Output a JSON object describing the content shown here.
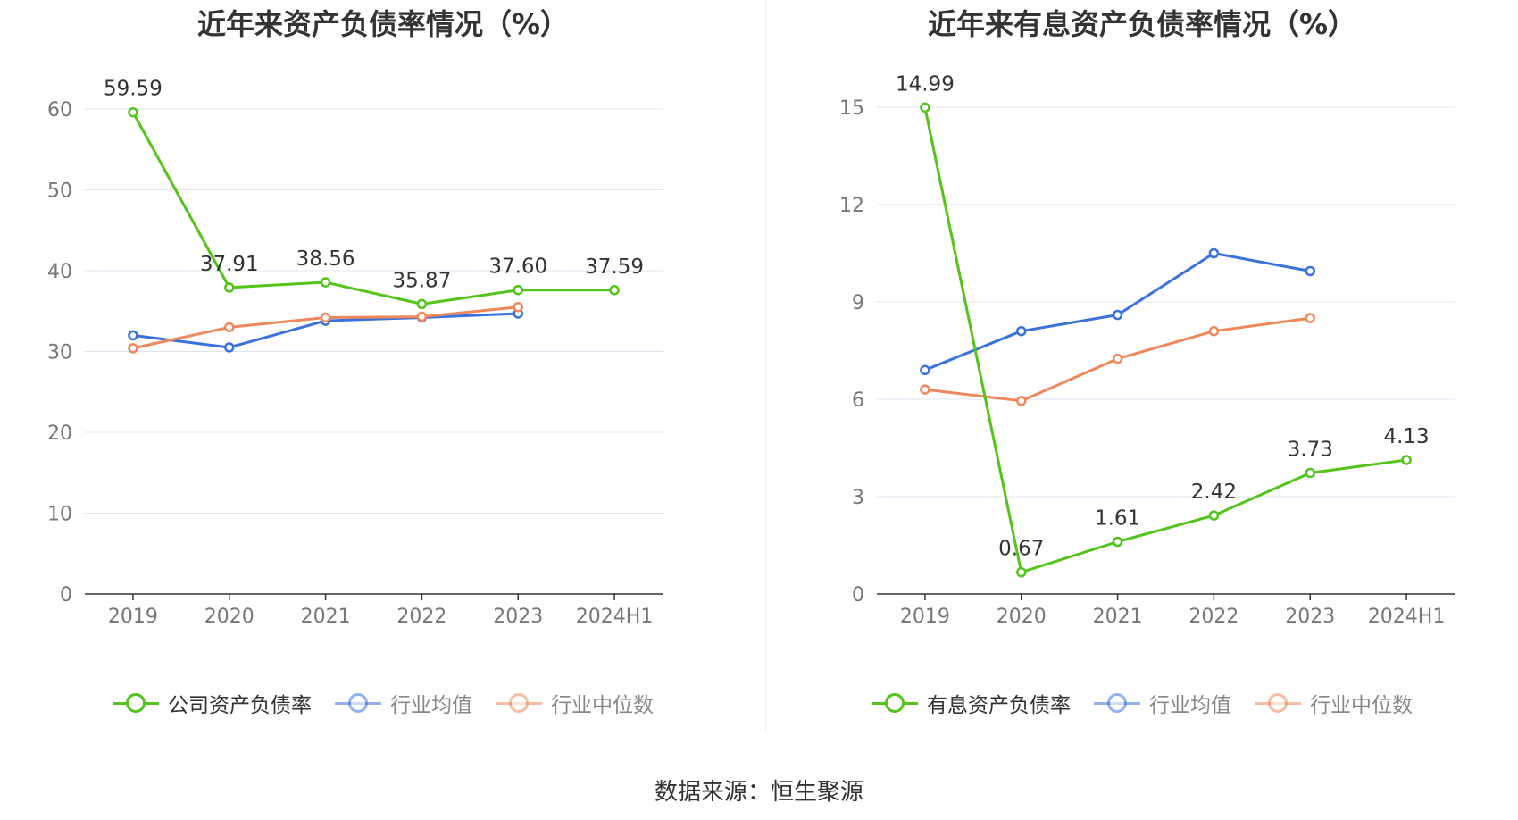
{
  "colors": {
    "company": "#52c41a",
    "industry_avg": "#3a72dd",
    "industry_median": "#f0875a",
    "grid": "#dfe4f0",
    "axis": "#333333",
    "tick_text": "#777777"
  },
  "footer": {
    "source": "数据来源：恒生聚源"
  },
  "chart_data": [
    {
      "type": "line",
      "title": "近年来资产负债率情况（%）",
      "categories": [
        "2019",
        "2020",
        "2021",
        "2022",
        "2023",
        "2024H1"
      ],
      "ylim": [
        0,
        60
      ],
      "yticks": [
        0,
        10,
        20,
        30,
        40,
        50,
        60
      ],
      "grid": true,
      "legend_position": "bottom",
      "series": [
        {
          "name": "公司资产负债率",
          "values": [
            59.59,
            37.91,
            38.56,
            35.87,
            37.6,
            37.59
          ],
          "labels": [
            "59.59",
            "37.91",
            "38.56",
            "35.87",
            "37.60",
            "37.59"
          ],
          "color_key": "company"
        },
        {
          "name": "行业均值",
          "values": [
            32.0,
            30.5,
            33.8,
            34.2,
            34.7,
            null
          ],
          "color_key": "industry_avg"
        },
        {
          "name": "行业中位数",
          "values": [
            30.4,
            33.0,
            34.2,
            34.3,
            35.5,
            null
          ],
          "color_key": "industry_median"
        }
      ]
    },
    {
      "type": "line",
      "title": "近年来有息资产负债率情况（%）",
      "categories": [
        "2019",
        "2020",
        "2021",
        "2022",
        "2023",
        "2024H1"
      ],
      "ylim": [
        0,
        15
      ],
      "yticks": [
        0,
        3,
        6,
        9,
        12,
        15
      ],
      "grid": true,
      "legend_position": "bottom",
      "series": [
        {
          "name": "有息资产负债率",
          "values": [
            14.99,
            0.67,
            1.61,
            2.42,
            3.73,
            4.13
          ],
          "labels": [
            "14.99",
            "0.67",
            "1.61",
            "2.42",
            "3.73",
            "4.13"
          ],
          "color_key": "company"
        },
        {
          "name": "行业均值",
          "values": [
            6.9,
            8.1,
            8.6,
            10.5,
            9.95,
            null
          ],
          "color_key": "industry_avg"
        },
        {
          "name": "行业中位数",
          "values": [
            6.3,
            5.95,
            7.25,
            8.1,
            8.5,
            null
          ],
          "color_key": "industry_median"
        }
      ]
    }
  ]
}
